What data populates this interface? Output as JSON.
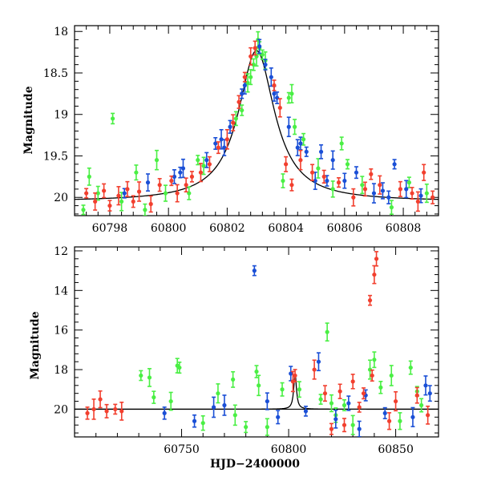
{
  "chart_data": [
    {
      "type": "scatter",
      "panel": "top",
      "title": "",
      "xlabel": "",
      "ylabel": "Magnitude",
      "xlim": [
        60796.8,
        60809.2
      ],
      "ylim": [
        20.22,
        17.93
      ],
      "x_ticks": [
        60798,
        60800,
        60802,
        60804,
        60806,
        60808
      ],
      "x_tick_labels": [
        "60798",
        "60800",
        "60802",
        "60804",
        "60806",
        "60808"
      ],
      "y_ticks": [
        18,
        18.5,
        19,
        19.5,
        20
      ],
      "y_tick_labels": [
        "18",
        "18.5",
        "19",
        "19.5",
        "20"
      ],
      "grid": false,
      "legend": "none",
      "model_curve": {
        "color": "#000000",
        "baseline": 20.05,
        "amplitude": 1.82,
        "t0": 60803.0,
        "width": 0.75
      },
      "series": [
        {
          "color": "#4aef44",
          "points": [
            [
              60797.1,
              20.15
            ],
            [
              60797.3,
              19.75
            ],
            [
              60797.6,
              19.95
            ],
            [
              60798.1,
              19.05
            ],
            [
              60798.4,
              20.05
            ],
            [
              60798.9,
              19.7
            ],
            [
              60799.2,
              20.15
            ],
            [
              60799.6,
              19.55
            ],
            [
              60799.9,
              19.95
            ],
            [
              60800.7,
              19.95
            ],
            [
              60801.0,
              19.55
            ],
            [
              60801.2,
              19.62
            ],
            [
              60802.3,
              19.05
            ],
            [
              60802.5,
              18.95
            ],
            [
              60802.7,
              18.62
            ],
            [
              60802.8,
              18.55
            ],
            [
              60802.9,
              18.4
            ],
            [
              60803.0,
              18.3
            ],
            [
              60803.05,
              18.1
            ],
            [
              60803.1,
              18.2
            ],
            [
              60803.2,
              18.28
            ],
            [
              60803.3,
              18.35
            ],
            [
              60803.9,
              19.8
            ],
            [
              60804.1,
              18.8
            ],
            [
              60804.2,
              18.75
            ],
            [
              60804.3,
              19.15
            ],
            [
              60804.6,
              19.3
            ],
            [
              60805.1,
              19.65
            ],
            [
              60805.6,
              19.9
            ],
            [
              60805.9,
              19.35
            ],
            [
              60806.1,
              19.6
            ],
            [
              60806.6,
              19.85
            ],
            [
              60807.6,
              20.12
            ],
            [
              60808.2,
              19.82
            ],
            [
              60808.8,
              19.95
            ]
          ]
        },
        {
          "color": "#1a4fd6",
          "points": [
            [
              60798.5,
              19.95
            ],
            [
              60799.3,
              19.82
            ],
            [
              60800.2,
              19.75
            ],
            [
              60800.4,
              19.7
            ],
            [
              60800.5,
              19.65
            ],
            [
              60801.3,
              19.55
            ],
            [
              60801.6,
              19.35
            ],
            [
              60801.8,
              19.3
            ],
            [
              60801.9,
              19.4
            ],
            [
              60802.1,
              19.15
            ],
            [
              60802.5,
              18.75
            ],
            [
              60802.6,
              18.65
            ],
            [
              60803.1,
              18.18
            ],
            [
              60803.3,
              18.4
            ],
            [
              60803.5,
              18.55
            ],
            [
              60803.6,
              18.75
            ],
            [
              60803.7,
              18.8
            ],
            [
              60804.1,
              19.15
            ],
            [
              60804.4,
              19.4
            ],
            [
              60804.5,
              19.35
            ],
            [
              60804.7,
              19.45
            ],
            [
              60805.0,
              19.8
            ],
            [
              60805.2,
              19.45
            ],
            [
              60805.4,
              19.8
            ],
            [
              60805.6,
              19.55
            ],
            [
              60806.0,
              19.8
            ],
            [
              60806.4,
              19.7
            ],
            [
              60807.0,
              19.95
            ],
            [
              60807.3,
              19.92
            ],
            [
              60807.5,
              20.0
            ],
            [
              60807.7,
              19.6
            ],
            [
              60808.1,
              19.9
            ],
            [
              60808.6,
              19.98
            ]
          ]
        },
        {
          "color": "#f23f2e",
          "points": [
            [
              60797.2,
              19.95
            ],
            [
              60797.5,
              20.05
            ],
            [
              60797.8,
              19.92
            ],
            [
              60798.0,
              20.1
            ],
            [
              60798.3,
              19.98
            ],
            [
              60798.6,
              19.9
            ],
            [
              60798.8,
              20.05
            ],
            [
              60799.0,
              19.93
            ],
            [
              60799.4,
              20.08
            ],
            [
              60799.7,
              19.85
            ],
            [
              60800.1,
              19.8
            ],
            [
              60800.3,
              19.95
            ],
            [
              60800.6,
              19.85
            ],
            [
              60800.8,
              19.75
            ],
            [
              60801.1,
              19.7
            ],
            [
              60801.4,
              19.6
            ],
            [
              60801.7,
              19.4
            ],
            [
              60802.0,
              19.3
            ],
            [
              60802.2,
              19.1
            ],
            [
              60802.4,
              18.85
            ],
            [
              60802.6,
              18.55
            ],
            [
              60802.8,
              18.3
            ],
            [
              60802.95,
              18.2
            ],
            [
              60803.6,
              18.65
            ],
            [
              60803.8,
              18.92
            ],
            [
              60804.0,
              19.6
            ],
            [
              60804.2,
              19.85
            ],
            [
              60804.5,
              19.55
            ],
            [
              60804.9,
              19.7
            ],
            [
              60805.3,
              19.75
            ],
            [
              60805.8,
              19.82
            ],
            [
              60806.3,
              20.0
            ],
            [
              60806.7,
              19.9
            ],
            [
              60806.9,
              19.72
            ],
            [
              60807.2,
              19.85
            ],
            [
              60807.9,
              19.9
            ],
            [
              60808.3,
              19.95
            ],
            [
              60808.5,
              20.05
            ],
            [
              60808.7,
              19.7
            ],
            [
              60809.0,
              20.0
            ]
          ]
        }
      ]
    },
    {
      "type": "scatter",
      "panel": "bottom",
      "title": "",
      "xlabel": "HJD−2400000",
      "ylabel": "Magnitude",
      "xlim": [
        60700,
        60870
      ],
      "ylim": [
        21.4,
        11.8
      ],
      "x_ticks": [
        60750,
        60800,
        60850
      ],
      "x_tick_labels": [
        "60750",
        "60800",
        "60850"
      ],
      "y_ticks": [
        12,
        14,
        16,
        18,
        20
      ],
      "y_tick_labels": [
        "12",
        "14",
        "16",
        "18",
        "20"
      ],
      "grid": false,
      "legend": "none",
      "baseline": 20.0,
      "model_curve": {
        "color": "#000000",
        "baseline": 20.0,
        "amplitude": 1.8,
        "t0": 60803.0,
        "width": 0.75
      },
      "series": [
        {
          "color": "#4aef44",
          "points": [
            [
              60731,
              18.3
            ],
            [
              60735,
              18.4
            ],
            [
              60748,
              17.8
            ],
            [
              60749,
              17.9
            ],
            [
              60767,
              19.2
            ],
            [
              60774,
              18.5
            ],
            [
              60785,
              18.1
            ],
            [
              60786,
              18.8
            ],
            [
              60790,
              20.9
            ],
            [
              60797,
              19.0
            ],
            [
              60815,
              19.5
            ],
            [
              60818,
              16.1
            ],
            [
              60822,
              20.3
            ],
            [
              60826,
              19.8
            ],
            [
              60838,
              18.0
            ],
            [
              60840,
              17.5
            ],
            [
              60843,
              18.9
            ],
            [
              60848,
              18.3
            ],
            [
              60852,
              20.6
            ],
            [
              60857,
              17.9
            ],
            [
              60860,
              19.1
            ],
            [
              60745,
              19.6
            ],
            [
              60760,
              20.7
            ],
            [
              60780,
              20.9
            ],
            [
              60830,
              20.8
            ],
            [
              60805,
              19.0
            ],
            [
              60737,
              19.4
            ],
            [
              60775,
              20.3
            ],
            [
              60820,
              19.7
            ],
            [
              60862,
              19.8
            ]
          ]
        },
        {
          "color": "#1a4fd6",
          "points": [
            [
              60784,
              13.0
            ],
            [
              60814,
              17.6
            ],
            [
              60801,
              18.2
            ],
            [
              60836,
              19.3
            ],
            [
              60864,
              18.8
            ],
            [
              60866,
              19.2
            ],
            [
              60742,
              20.2
            ],
            [
              60770,
              19.8
            ],
            [
              60790,
              19.6
            ],
            [
              60795,
              20.4
            ],
            [
              60808,
              20.1
            ],
            [
              60822,
              20.5
            ],
            [
              60828,
              19.7
            ],
            [
              60845,
              20.2
            ],
            [
              60858,
              20.4
            ],
            [
              60833,
              21.0
            ],
            [
              60756,
              20.6
            ],
            [
              60765,
              19.9
            ]
          ]
        },
        {
          "color": "#f23f2e",
          "points": [
            [
              60838,
              14.5
            ],
            [
              60840,
              13.2
            ],
            [
              60841,
              12.4
            ],
            [
              60839,
              18.3
            ],
            [
              60812,
              18.0
            ],
            [
              60817,
              19.2
            ],
            [
              60706,
              20.2
            ],
            [
              60709,
              20.0
            ],
            [
              60712,
              19.5
            ],
            [
              60715,
              20.1
            ],
            [
              60719,
              20.0
            ],
            [
              60722,
              20.1
            ],
            [
              60830,
              18.6
            ],
            [
              60835,
              19.2
            ],
            [
              60850,
              19.6
            ],
            [
              60860,
              19.3
            ],
            [
              60803,
              18.3
            ],
            [
              60802,
              18.6
            ],
            [
              60847,
              20.6
            ],
            [
              60826,
              20.8
            ],
            [
              60833,
              19.9
            ],
            [
              60865,
              20.3
            ],
            [
              60824,
              19.1
            ],
            [
              60820,
              21.0
            ]
          ]
        }
      ]
    }
  ]
}
